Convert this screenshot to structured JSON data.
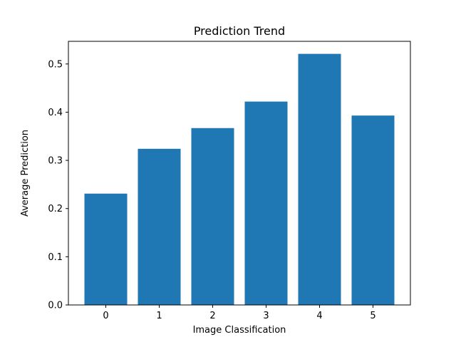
{
  "chart_data": {
    "type": "bar",
    "title": "Prediction Trend",
    "xlabel": "Image Classification",
    "ylabel": "Average Prediction",
    "categories": [
      "0",
      "1",
      "2",
      "3",
      "4",
      "5"
    ],
    "values": [
      0.231,
      0.324,
      0.367,
      0.422,
      0.521,
      0.393
    ],
    "ylim": [
      0,
      0.547
    ],
    "yticks": [
      0.0,
      0.1,
      0.2,
      0.3,
      0.4,
      0.5
    ],
    "ytick_labels": [
      "0.0",
      "0.1",
      "0.2",
      "0.3",
      "0.4",
      "0.5"
    ],
    "bar_color": "#1f77b4",
    "grid": false,
    "legend": false
  }
}
